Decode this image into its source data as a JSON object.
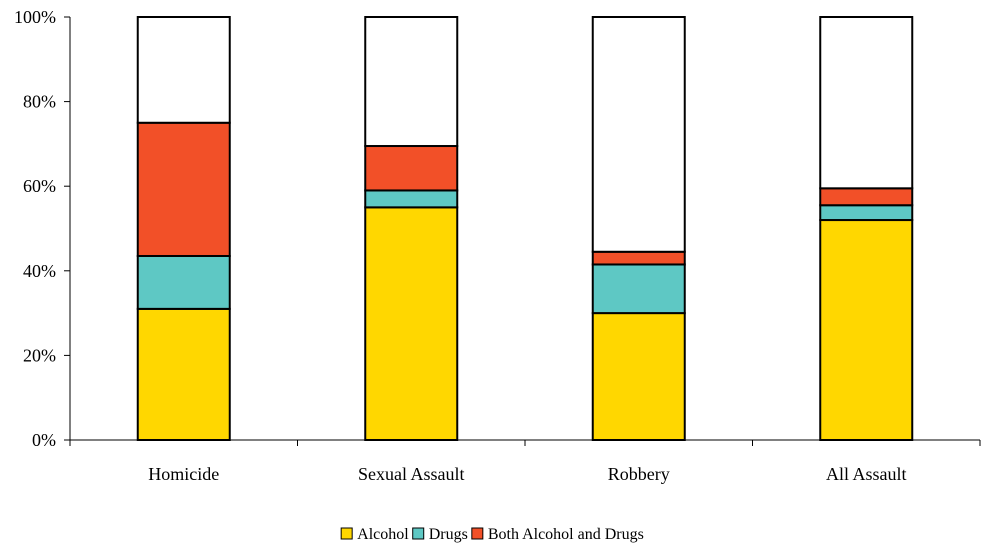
{
  "chart_data": {
    "type": "bar",
    "stacked": true,
    "categories": [
      "Homicide",
      "Sexual Assault",
      "Robbery",
      "All Assault"
    ],
    "series": [
      {
        "name": "Alcohol",
        "color": "#FFD700",
        "values": [
          31,
          55,
          30,
          52
        ]
      },
      {
        "name": "Drugs",
        "color": "#5EC8C4",
        "values": [
          12.5,
          4,
          11.5,
          3.5
        ]
      },
      {
        "name": "Both Alcohol and Drugs",
        "color": "#F25028",
        "values": [
          31.5,
          10.5,
          3,
          4
        ]
      },
      {
        "name": "",
        "color": "#FFFFFF",
        "values": [
          25,
          30.5,
          55.5,
          40.5
        ]
      }
    ],
    "ylim": [
      0,
      100
    ],
    "yticks": [
      0,
      20,
      40,
      60,
      80,
      100
    ],
    "ytick_labels": [
      "0%",
      "20%",
      "40%",
      "60%",
      "80%",
      "100%"
    ],
    "title": "",
    "xlabel": "",
    "ylabel": "",
    "grid": false,
    "legend_position": "bottom"
  },
  "legend": [
    {
      "label": "Alcohol",
      "color": "#FFD700"
    },
    {
      "label": "Drugs",
      "color": "#5EC8C4"
    },
    {
      "label": "Both Alcohol and Drugs",
      "color": "#F25028"
    }
  ]
}
